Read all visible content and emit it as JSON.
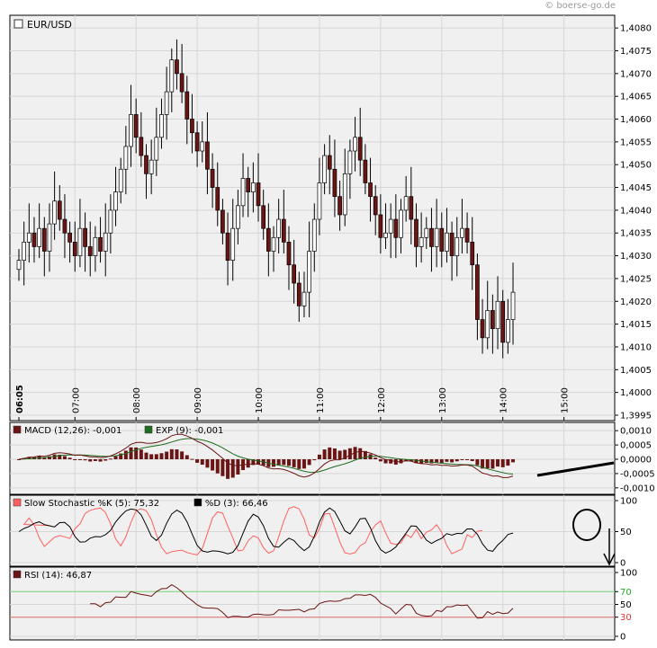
{
  "watermark": "© boerse-go.de",
  "chart_data": [
    {
      "type": "candlestick",
      "title": "EUR/USD",
      "x_tick_labels": [
        "06:05",
        "07:00",
        "08:00",
        "09:00",
        "10:00",
        "11:00",
        "12:00",
        "13:00",
        "14:00",
        "15:00"
      ],
      "y_tick_labels": [
        "1,4080",
        "1,4075",
        "1,4070",
        "1,4065",
        "1,4060",
        "1,4055",
        "1,4050",
        "1,4045",
        "1,4040",
        "1,4035",
        "1,4030",
        "1,4025",
        "1,4020",
        "1,4015",
        "1,4010",
        "1,4005",
        "1,4000",
        "1,3995"
      ],
      "ylim": [
        1.3995,
        1.4082
      ],
      "interval_minutes": 5,
      "first_time": "06:05",
      "grid": true,
      "colors": {
        "up_fill": "#ffffff",
        "down_fill": "#6b1414",
        "wick": "#000000"
      },
      "closes": [
        1.4029,
        1.4033,
        1.4035,
        1.4032,
        1.4036,
        1.4031,
        1.4037,
        1.4042,
        1.4038,
        1.4035,
        1.4033,
        1.403,
        1.4036,
        1.4032,
        1.403,
        1.4034,
        1.4031,
        1.4035,
        1.404,
        1.4044,
        1.4049,
        1.4054,
        1.4061,
        1.4056,
        1.4052,
        1.4048,
        1.4051,
        1.4056,
        1.4061,
        1.4066,
        1.4073,
        1.407,
        1.4066,
        1.406,
        1.4057,
        1.4053,
        1.4055,
        1.4049,
        1.4045,
        1.404,
        1.4035,
        1.4029,
        1.4036,
        1.4041,
        1.4047,
        1.4044,
        1.4046,
        1.4041,
        1.4036,
        1.4031,
        1.4034,
        1.4038,
        1.4033,
        1.4028,
        1.4024,
        1.4019,
        1.4022,
        1.4031,
        1.4038,
        1.4046,
        1.4052,
        1.4049,
        1.4043,
        1.4039,
        1.4048,
        1.4053,
        1.4056,
        1.4051,
        1.4046,
        1.4043,
        1.4039,
        1.4034,
        1.4035,
        1.4038,
        1.4034,
        1.404,
        1.4043,
        1.4038,
        1.4032,
        1.4034,
        1.4036,
        1.4032,
        1.4036,
        1.4031,
        1.4035,
        1.403,
        1.4034,
        1.4036,
        1.4033,
        1.4028,
        1.4016,
        1.4012,
        1.4018,
        1.4014,
        1.402,
        1.4011,
        1.4016,
        1.4022
      ],
      "series": [
        {
          "name": "MACD (12,26)",
          "legend_value": "-0,001",
          "color": "#6b1414"
        },
        {
          "name": "EXP (9)",
          "legend_value": "-0,001",
          "color": "#1f6b1f"
        }
      ]
    },
    {
      "type": "line",
      "indicator": "MACD",
      "legend": [
        {
          "text": "MACD (12,26): -0,001",
          "color": "#6b1414"
        },
        {
          "text": "EXP (9): -0,001",
          "color": "#1f6b1f"
        }
      ],
      "y_tick_labels": [
        "0,0010",
        "0,0005",
        "0,0000",
        "-0,0005",
        "-0,0010"
      ],
      "ylim": [
        -0.0011,
        0.0011
      ]
    },
    {
      "type": "line",
      "indicator": "Slow Stochastic",
      "legend": [
        {
          "text": "Slow Stochastic %K (5): 75,32",
          "color": "#ff6060"
        },
        {
          "text": "%D (3): 66,46",
          "color": "#000000"
        }
      ],
      "y_tick_labels": [
        "100",
        "50",
        "0"
      ],
      "ylim": [
        0,
        100
      ]
    },
    {
      "type": "line",
      "indicator": "RSI",
      "legend": [
        {
          "text": "RSI (14): 46,87",
          "color": "#6b1414"
        }
      ],
      "y_tick_labels": [
        "100",
        "70",
        "50",
        "30",
        "0"
      ],
      "tick_colors": {
        "70": "#22aa22",
        "30": "#dd3333"
      },
      "ylim": [
        0,
        100
      ]
    }
  ]
}
